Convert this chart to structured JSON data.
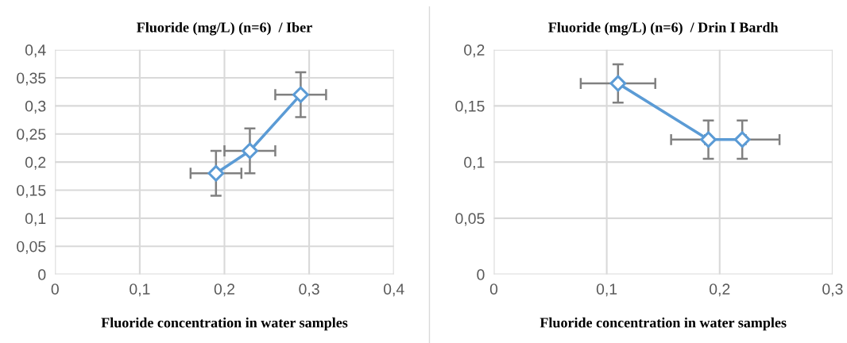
{
  "chart_data": [
    {
      "type": "line",
      "title": "Fluoride (mg/L) (n=6)  / Iber",
      "xlabel": "Fluoride concentration in water samples",
      "x": [
        0.19,
        0.23,
        0.29
      ],
      "series": [
        {
          "color": "#5b9bd5",
          "values": [
            0.18,
            0.22,
            0.32
          ],
          "errors": [
            0.04,
            0.04,
            0.04
          ],
          "xerrors": [
            0.03,
            0.03,
            0.03
          ]
        }
      ],
      "xlim": [
        0,
        0.4
      ],
      "xticks": [
        0,
        {
          "value": 0.1,
          "label": "0,1"
        },
        {
          "value": 0.2,
          "label": "0,2"
        },
        {
          "value": 0.3,
          "label": "0,3"
        },
        {
          "value": 0.4,
          "label": "0,4"
        }
      ],
      "ylim": [
        0,
        0.4
      ],
      "yticks": [
        0,
        {
          "value": 0.05,
          "label": "0,05"
        },
        {
          "value": 0.1,
          "label": "0,1"
        },
        {
          "value": 0.15,
          "label": "0,15"
        },
        {
          "value": 0.2,
          "label": "0,2"
        },
        {
          "value": 0.25,
          "label": "0,25"
        },
        {
          "value": 0.3,
          "label": "0,3"
        },
        {
          "value": 0.35,
          "label": "0,35"
        },
        {
          "value": 0.4,
          "label": "0,4"
        }
      ],
      "grid": true,
      "marker": "diamond",
      "line_style": "solid"
    },
    {
      "type": "line",
      "title": "Fluoride (mg/L) (n=6)  / Drin I Bardh",
      "xlabel": "Fluoride concentration in water samples",
      "x": [
        0.11,
        0.19,
        0.22
      ],
      "series": [
        {
          "color": "#5b9bd5",
          "values": [
            0.17,
            0.12,
            0.12
          ],
          "errors": [
            0.017,
            0.017,
            0.017
          ],
          "xerrors": [
            0.033,
            0.033,
            0.033
          ]
        }
      ],
      "xlim": [
        0,
        0.3
      ],
      "xticks": [
        0,
        {
          "value": 0.1,
          "label": "0,1"
        },
        {
          "value": 0.2,
          "label": "0,2"
        },
        {
          "value": 0.3,
          "label": "0,3"
        }
      ],
      "ylim": [
        0,
        0.2
      ],
      "yticks": [
        0,
        {
          "value": 0.05,
          "label": "0,05"
        },
        {
          "value": 0.1,
          "label": "0,1"
        },
        {
          "value": 0.15,
          "label": "0,15"
        },
        {
          "value": 0.2,
          "label": "0,2"
        }
      ],
      "grid": true,
      "marker": "diamond",
      "line_style": "solid"
    }
  ]
}
